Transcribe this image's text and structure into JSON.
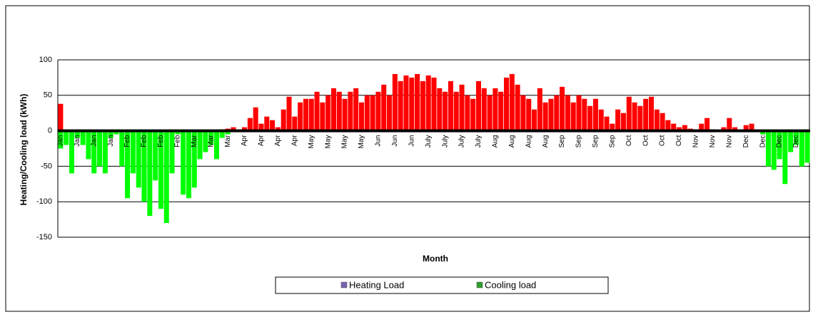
{
  "chart_data": {
    "type": "bar",
    "xlabel": "Month",
    "ylabel": "Heating/Cooling load (kWh)",
    "categories": [
      "Jan",
      null,
      null,
      "Jan",
      null,
      null,
      "Jan",
      null,
      null,
      "Jan",
      null,
      null,
      "Feb",
      null,
      null,
      "Feb",
      null,
      null,
      "Feb",
      null,
      null,
      "Feb",
      null,
      null,
      "Mar",
      null,
      null,
      "Mar",
      null,
      null,
      "Mar",
      null,
      null,
      "Apr",
      null,
      null,
      "Apr",
      null,
      null,
      "Apr",
      null,
      null,
      "Apr",
      null,
      null,
      "May",
      null,
      null,
      "May",
      null,
      null,
      "May",
      null,
      null,
      "May",
      null,
      null,
      "Jun",
      null,
      null,
      "Jun",
      null,
      null,
      "Jun",
      null,
      null,
      "July",
      null,
      null,
      "July",
      null,
      null,
      "July",
      null,
      null,
      "July",
      null,
      null,
      "Aug",
      null,
      null,
      "Aug",
      null,
      null,
      "Aug",
      null,
      null,
      "Aug",
      null,
      null,
      "Sep",
      null,
      null,
      "Sep",
      null,
      null,
      "Sep",
      null,
      null,
      "Sep",
      null,
      null,
      "Oct",
      null,
      null,
      "Oct",
      null,
      null,
      "Oct",
      null,
      null,
      "Oct",
      null,
      null,
      "Nov",
      null,
      null,
      "Nov",
      null,
      null,
      "Nov",
      null,
      null,
      "Dec",
      null,
      null,
      "Dec",
      null,
      null,
      "Dec",
      null,
      null,
      "Dec",
      null,
      null
    ],
    "series": [
      {
        "name": "Heating Load",
        "color": "#ff0000",
        "legend_color": "#7b5fb0",
        "values": [
          38,
          0,
          0,
          0,
          0,
          0,
          0,
          0,
          0,
          0,
          0,
          0,
          0,
          0,
          0,
          0,
          0,
          0,
          0,
          0,
          0,
          0,
          0,
          0,
          0,
          0,
          0,
          0,
          0,
          2,
          3,
          5,
          2,
          5,
          18,
          33,
          10,
          20,
          15,
          5,
          30,
          48,
          20,
          40,
          45,
          45,
          55,
          40,
          50,
          60,
          55,
          45,
          55,
          60,
          40,
          50,
          50,
          55,
          65,
          50,
          80,
          70,
          78,
          75,
          80,
          70,
          78,
          75,
          60,
          55,
          70,
          55,
          65,
          50,
          45,
          70,
          60,
          50,
          60,
          55,
          75,
          80,
          65,
          50,
          45,
          30,
          60,
          40,
          45,
          50,
          62,
          50,
          40,
          50,
          45,
          35,
          45,
          30,
          20,
          10,
          30,
          25,
          48,
          40,
          35,
          45,
          48,
          30,
          25,
          15,
          10,
          5,
          8,
          3,
          2,
          10,
          18,
          2,
          1,
          5,
          18,
          5,
          2,
          8,
          10,
          2,
          0,
          0,
          0,
          0,
          0,
          0,
          0,
          0,
          0
        ]
      },
      {
        "name": "Cooling load",
        "color": "#00ff00",
        "legend_color": "#2e9e2e",
        "values": [
          -25,
          -20,
          -60,
          -10,
          -20,
          -40,
          -60,
          -50,
          -60,
          -10,
          -5,
          -50,
          -95,
          -60,
          -80,
          -100,
          -120,
          -70,
          -110,
          -130,
          -60,
          -5,
          -90,
          -95,
          -80,
          -40,
          -30,
          -20,
          -40,
          -10,
          -5,
          0,
          0,
          0,
          0,
          0,
          0,
          0,
          0,
          0,
          0,
          0,
          0,
          0,
          0,
          0,
          0,
          0,
          0,
          0,
          0,
          0,
          0,
          0,
          0,
          0,
          0,
          0,
          0,
          0,
          0,
          0,
          0,
          0,
          0,
          0,
          0,
          0,
          0,
          0,
          0,
          0,
          0,
          0,
          0,
          0,
          0,
          0,
          0,
          0,
          0,
          0,
          0,
          0,
          0,
          0,
          0,
          0,
          0,
          0,
          0,
          0,
          0,
          0,
          0,
          0,
          0,
          0,
          0,
          0,
          0,
          0,
          0,
          0,
          0,
          0,
          0,
          0,
          0,
          0,
          0,
          0,
          0,
          0,
          0,
          0,
          0,
          0,
          0,
          0,
          0,
          0,
          0,
          0,
          0,
          0,
          -5,
          -50,
          -55,
          -40,
          -75,
          -30,
          -20,
          -50,
          -45
        ]
      }
    ],
    "ylim": [
      -150,
      100
    ],
    "yticks": [
      -150,
      -100,
      -50,
      0,
      50,
      100
    ],
    "grid": true
  }
}
